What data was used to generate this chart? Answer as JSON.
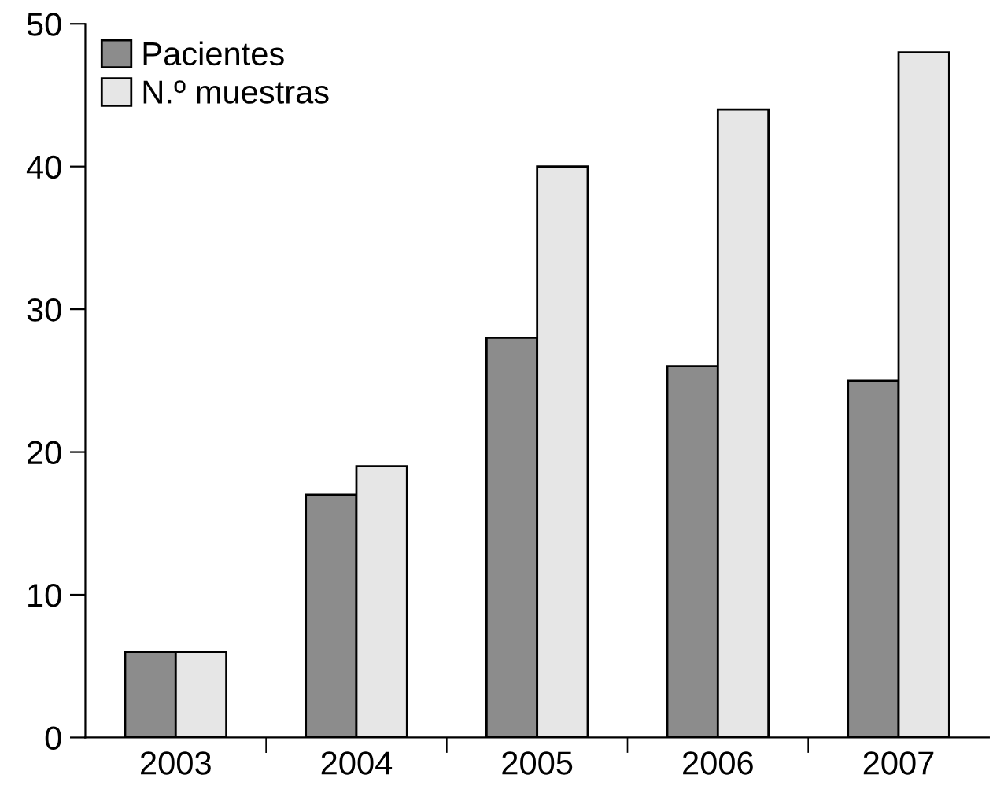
{
  "chart_data": {
    "type": "bar",
    "categories": [
      "2003",
      "2004",
      "2005",
      "2006",
      "2007"
    ],
    "series": [
      {
        "name": "Pacientes",
        "color": "#8c8c8c",
        "values": [
          6,
          17,
          28,
          26,
          25
        ]
      },
      {
        "name": "N.º muestras",
        "color": "#e6e6e6",
        "values": [
          6,
          19,
          40,
          44,
          48
        ]
      }
    ],
    "ylim": [
      0,
      50
    ],
    "yticks": [
      0,
      10,
      20,
      30,
      40,
      50
    ],
    "grid": false,
    "legend": "top left"
  }
}
